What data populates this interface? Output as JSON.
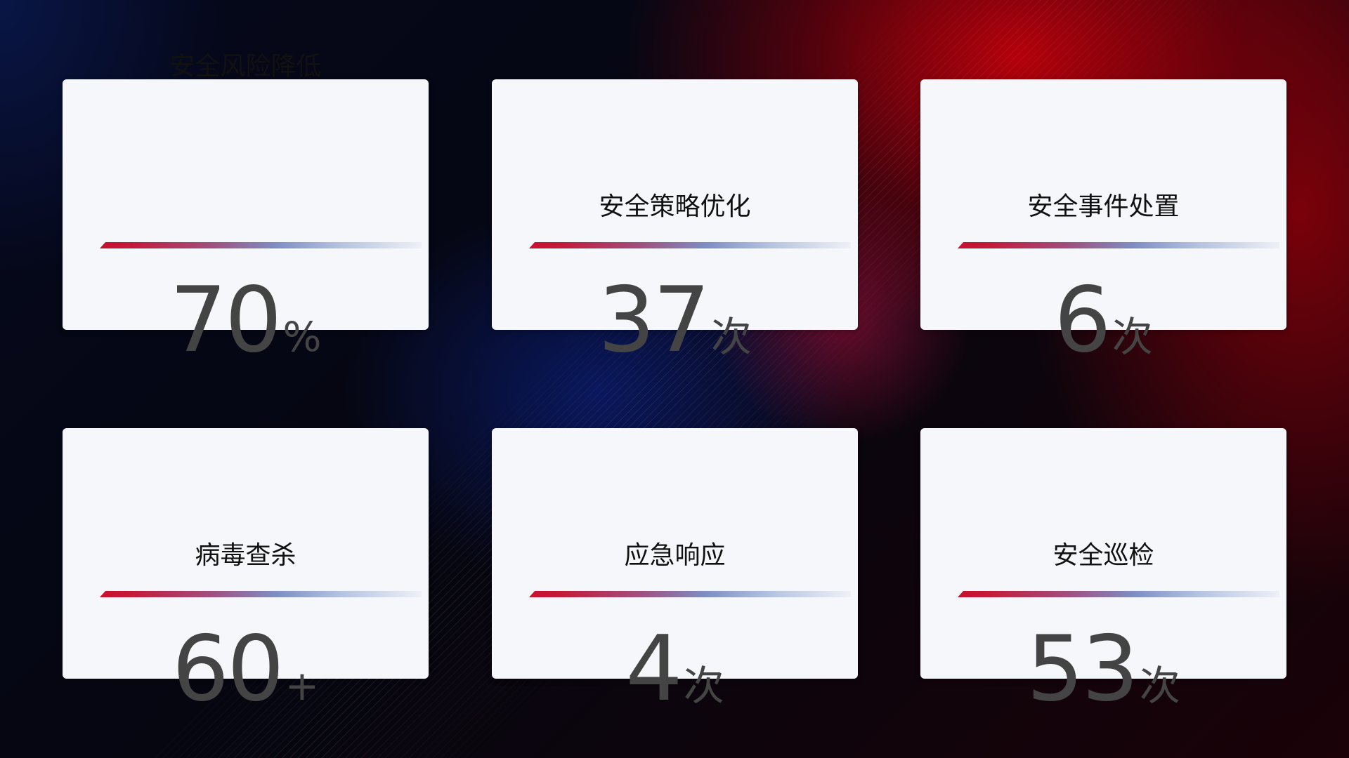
{
  "cards": [
    {
      "title": "安全风险降低",
      "value": "70",
      "unit": "%"
    },
    {
      "title": "安全策略优化",
      "value": "37",
      "unit": "次"
    },
    {
      "title": "安全事件处置",
      "value": "6",
      "unit": "次"
    },
    {
      "title": "病毒查杀",
      "value": "60",
      "unit": "+"
    },
    {
      "title": "应急响应",
      "value": "4",
      "unit": "次"
    },
    {
      "title": "安全巡检",
      "value": "53",
      "unit": "次"
    }
  ],
  "colors": {
    "accent_red": "#c8102e",
    "accent_blue": "#7d8fc4",
    "card_bg": "#f6f7fb",
    "value_text": "#444444"
  }
}
